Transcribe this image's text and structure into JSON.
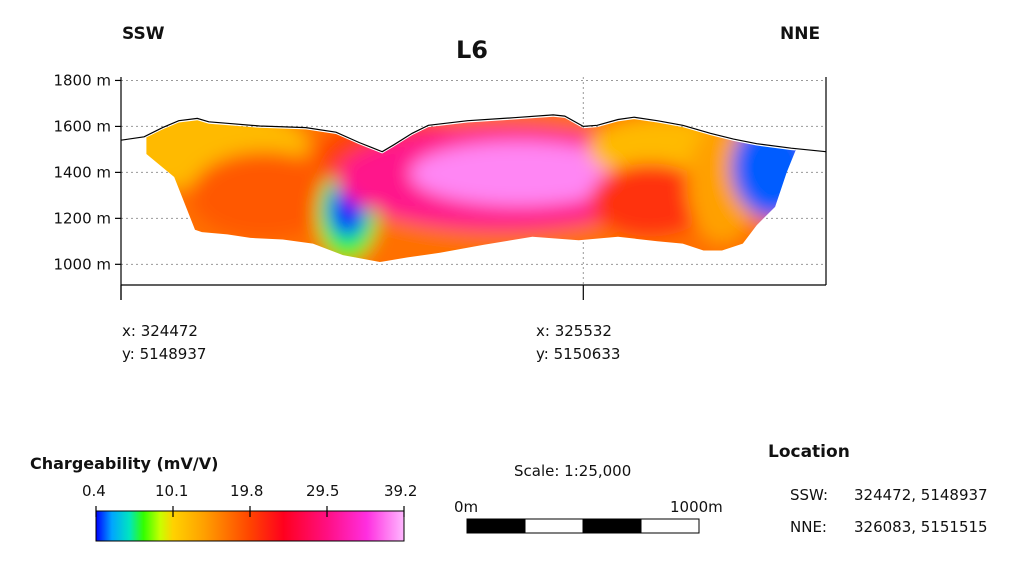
{
  "chart_data": {
    "type": "heatmap",
    "title": "L6",
    "directions": {
      "left": "SSW",
      "right": "NNE"
    },
    "ylabel": "",
    "xlabel": "",
    "y_unit": "m",
    "y_ticks": [
      1800,
      1600,
      1400,
      1200,
      1000
    ],
    "y_tick_labels": [
      "1800 m",
      "1600 m",
      "1400 m",
      "1200 m",
      "1000 m"
    ],
    "ylim": [
      910,
      1815
    ],
    "section_length_m": 3050,
    "grid": true,
    "x_markers": [
      {
        "distance_m": 0,
        "x_label": "x: 324472",
        "y_label": "y: 5148937"
      },
      {
        "distance_m": 2000,
        "x_label": "x: 325532",
        "y_label": "y: 5150633"
      }
    ],
    "topography": [
      [
        0,
        1540
      ],
      [
        100,
        1555
      ],
      [
        180,
        1595
      ],
      [
        250,
        1625
      ],
      [
        330,
        1635
      ],
      [
        380,
        1620
      ],
      [
        480,
        1612
      ],
      [
        600,
        1602
      ],
      [
        800,
        1595
      ],
      [
        930,
        1575
      ],
      [
        1030,
        1530
      ],
      [
        1080,
        1510
      ],
      [
        1130,
        1490
      ],
      [
        1180,
        1520
      ],
      [
        1260,
        1570
      ],
      [
        1330,
        1605
      ],
      [
        1500,
        1625
      ],
      [
        1700,
        1638
      ],
      [
        1870,
        1650
      ],
      [
        1920,
        1645
      ],
      [
        2000,
        1600
      ],
      [
        2060,
        1605
      ],
      [
        2150,
        1630
      ],
      [
        2220,
        1640
      ],
      [
        2320,
        1625
      ],
      [
        2430,
        1605
      ],
      [
        2550,
        1570
      ],
      [
        2650,
        1545
      ],
      [
        2750,
        1525
      ],
      [
        2900,
        1505
      ],
      [
        3050,
        1490
      ]
    ],
    "model_bottom": [
      [
        110,
        1480
      ],
      [
        230,
        1380
      ],
      [
        320,
        1150
      ],
      [
        350,
        1140
      ],
      [
        460,
        1130
      ],
      [
        560,
        1115
      ],
      [
        700,
        1108
      ],
      [
        830,
        1090
      ],
      [
        960,
        1040
      ],
      [
        1120,
        1010
      ],
      [
        1240,
        1030
      ],
      [
        1380,
        1050
      ],
      [
        1570,
        1085
      ],
      [
        1780,
        1120
      ],
      [
        1980,
        1105
      ],
      [
        2150,
        1120
      ],
      [
        2320,
        1100
      ],
      [
        2430,
        1090
      ],
      [
        2520,
        1060
      ],
      [
        2600,
        1060
      ],
      [
        2690,
        1090
      ],
      [
        2750,
        1170
      ],
      [
        2830,
        1250
      ],
      [
        2880,
        1400
      ],
      [
        2920,
        1500
      ]
    ],
    "model_blobs": [
      {
        "x": 110,
        "y": 1520,
        "rx": 700,
        "ry": 190,
        "value": 12.0
      },
      {
        "x": 620,
        "y": 1300,
        "rx": 320,
        "ry": 190,
        "value": 18.5
      },
      {
        "x": 980,
        "y": 1220,
        "rx": 130,
        "ry": 200,
        "value": 6.0
      },
      {
        "x": 980,
        "y": 1240,
        "rx": 80,
        "ry": 120,
        "value": 0.8
      },
      {
        "x": 1200,
        "y": 1470,
        "rx": 350,
        "ry": 170,
        "value": 20.0
      },
      {
        "x": 1650,
        "y": 1375,
        "rx": 720,
        "ry": 230,
        "value": 30.0
      },
      {
        "x": 1720,
        "y": 1395,
        "rx": 470,
        "ry": 140,
        "value": 37.5
      },
      {
        "x": 2350,
        "y": 1500,
        "rx": 330,
        "ry": 140,
        "value": 12.0
      },
      {
        "x": 2290,
        "y": 1280,
        "rx": 260,
        "ry": 160,
        "value": 21.0
      },
      {
        "x": 2600,
        "y": 1350,
        "rx": 150,
        "ry": 260,
        "value": 14.0
      },
      {
        "x": 2820,
        "y": 1420,
        "rx": 180,
        "ry": 220,
        "value": 1.5
      }
    ],
    "colorbar": {
      "title": "Chargeability (mV/V)",
      "min": 0.4,
      "max": 39.2,
      "ticks": [
        0.4,
        10.1,
        19.8,
        29.5,
        39.2
      ],
      "tick_labels": [
        "0.4",
        "10.1",
        "19.8",
        "29.5",
        "39.2"
      ],
      "stops": [
        {
          "value": 0.4,
          "color": "#0000ff"
        },
        {
          "value": 2.4,
          "color": "#00a5ff"
        },
        {
          "value": 4.6,
          "color": "#00e5c0"
        },
        {
          "value": 6.4,
          "color": "#33ff00"
        },
        {
          "value": 8.5,
          "color": "#c8ff00"
        },
        {
          "value": 10.1,
          "color": "#ffd200"
        },
        {
          "value": 14.0,
          "color": "#ffa000"
        },
        {
          "value": 19.8,
          "color": "#ff4400"
        },
        {
          "value": 24.0,
          "color": "#ff001e"
        },
        {
          "value": 29.5,
          "color": "#ff0f82"
        },
        {
          "value": 34.5,
          "color": "#ff2ee0"
        },
        {
          "value": 39.2,
          "color": "#ffb8ff"
        }
      ]
    },
    "scale": {
      "label": "Scale: 1:25,000",
      "start_label": "0m",
      "end_label": "1000m",
      "length_m": 1000,
      "segments": 4
    },
    "location": {
      "title": "Location",
      "rows": [
        {
          "name": "SSW:",
          "coords": "324472, 5148937"
        },
        {
          "name": "NNE:",
          "coords": "326083, 5151515"
        }
      ]
    }
  }
}
